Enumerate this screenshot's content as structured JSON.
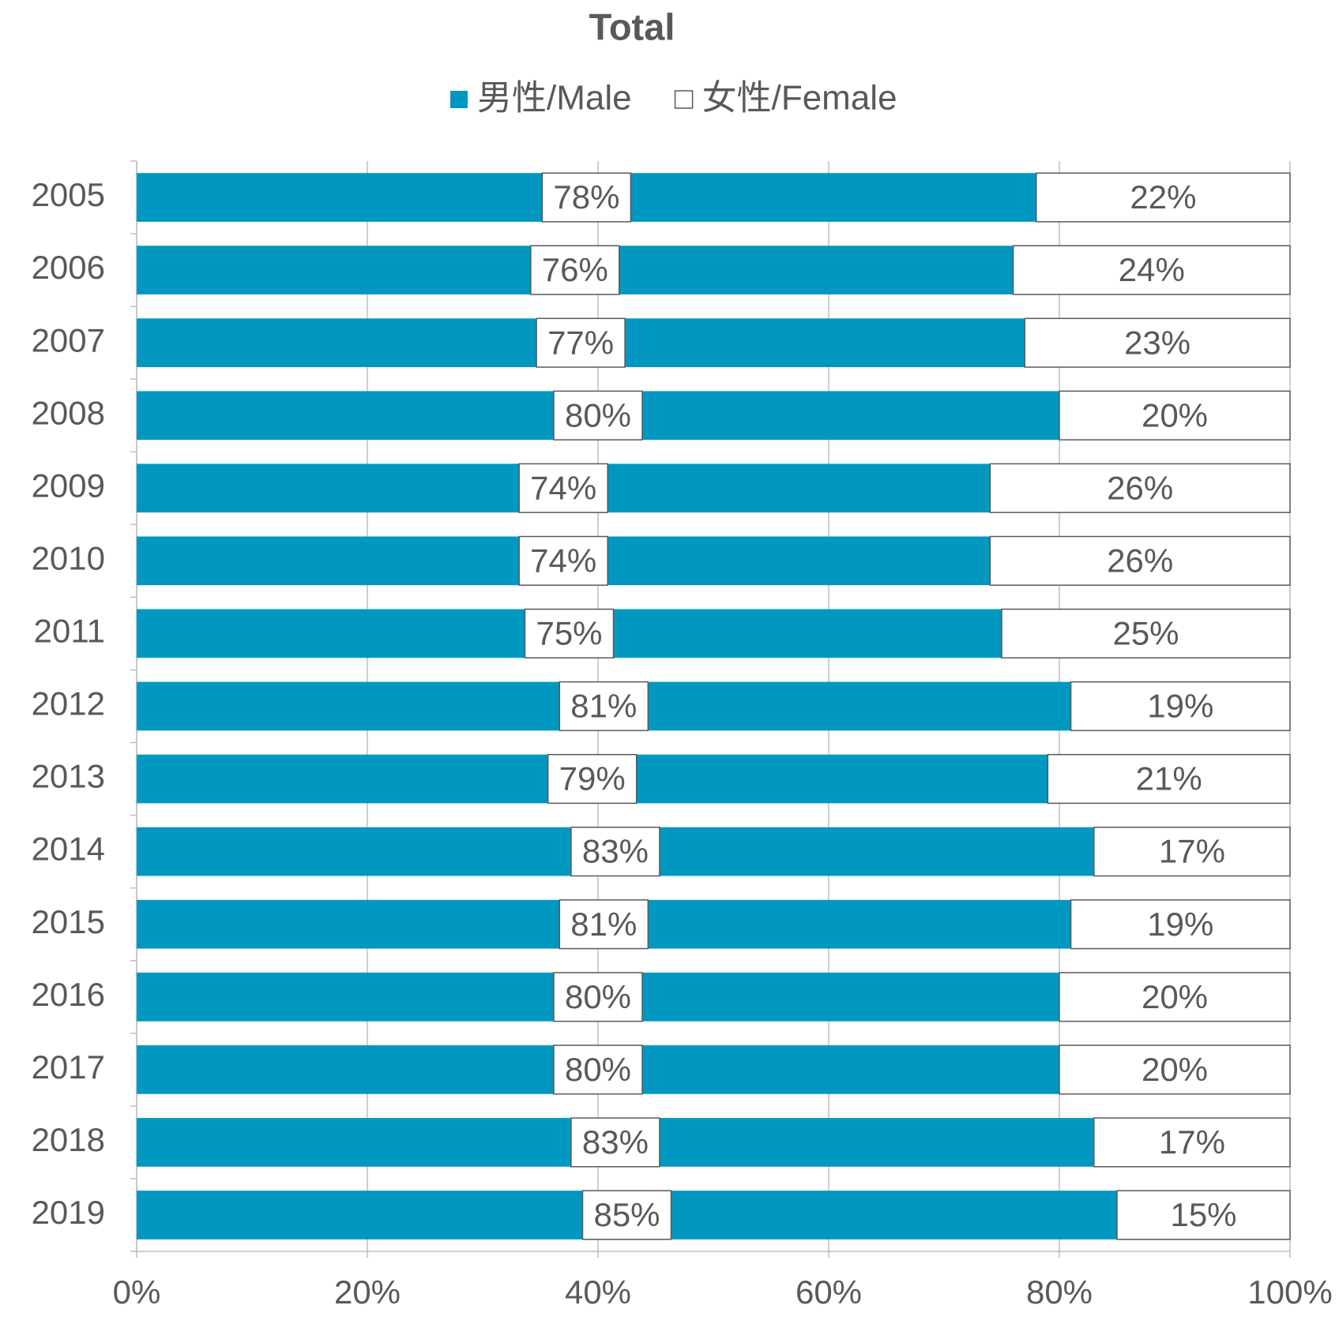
{
  "chart_data": {
    "type": "stacked_bar_horizontal",
    "title": "Total",
    "categories": [
      "2005",
      "2006",
      "2007",
      "2008",
      "2009",
      "2010",
      "2011",
      "2012",
      "2013",
      "2014",
      "2015",
      "2016",
      "2017",
      "2018",
      "2019"
    ],
    "series": [
      {
        "name": "男性/Male",
        "color": "#0098c0",
        "values": [
          78,
          76,
          77,
          80,
          74,
          74,
          75,
          81,
          79,
          83,
          81,
          80,
          80,
          83,
          85
        ],
        "value_labels": [
          "78%",
          "76%",
          "77%",
          "80%",
          "74%",
          "74%",
          "75%",
          "81%",
          "79%",
          "83%",
          "81%",
          "80%",
          "80%",
          "83%",
          "85%"
        ]
      },
      {
        "name": "女性/Female",
        "color": "#ffffff",
        "values": [
          22,
          24,
          23,
          20,
          26,
          26,
          25,
          19,
          21,
          17,
          19,
          20,
          20,
          17,
          15
        ],
        "value_labels": [
          "22%",
          "24%",
          "23%",
          "20%",
          "26%",
          "26%",
          "25%",
          "19%",
          "21%",
          "17%",
          "19%",
          "20%",
          "20%",
          "17%",
          "15%"
        ]
      }
    ],
    "xlim": [
      0,
      100
    ],
    "xticks": [
      {
        "value": 0,
        "label": "0%"
      },
      {
        "value": 20,
        "label": "20%"
      },
      {
        "value": 40,
        "label": "40%"
      },
      {
        "value": 60,
        "label": "60%"
      },
      {
        "value": 80,
        "label": "80%"
      },
      {
        "value": 100,
        "label": "100%"
      }
    ],
    "grid": true,
    "legend": "top"
  }
}
